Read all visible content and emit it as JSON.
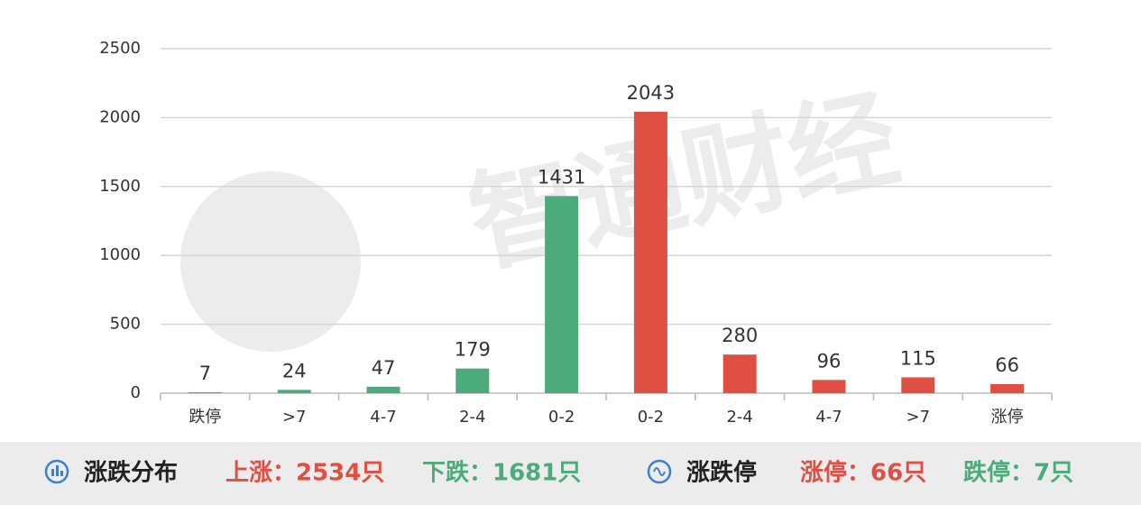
{
  "chart_data": {
    "type": "bar",
    "categories": [
      "跌停",
      ">7",
      "4-7",
      "2-4",
      "0-2",
      "0-2",
      "2-4",
      "4-7",
      ">7",
      "涨停"
    ],
    "values": [
      7,
      24,
      47,
      179,
      1431,
      2043,
      280,
      96,
      115,
      66
    ],
    "colors": [
      "#4dab7b",
      "#4dab7b",
      "#4dab7b",
      "#4dab7b",
      "#4dab7b",
      "#e04f43",
      "#e04f43",
      "#e04f43",
      "#e04f43",
      "#e04f43"
    ],
    "ylim": [
      0,
      2500
    ],
    "yticks": [
      0,
      500,
      1000,
      1500,
      2000,
      2500
    ],
    "grid": true
  },
  "watermark": "智通财经",
  "footer": {
    "left": {
      "title": "涨跌分布",
      "up": "上涨：2534只",
      "down": "下跌：1681只"
    },
    "right": {
      "title": "涨跌停",
      "up": "涨停：66只",
      "down": "跌停：7只"
    }
  }
}
